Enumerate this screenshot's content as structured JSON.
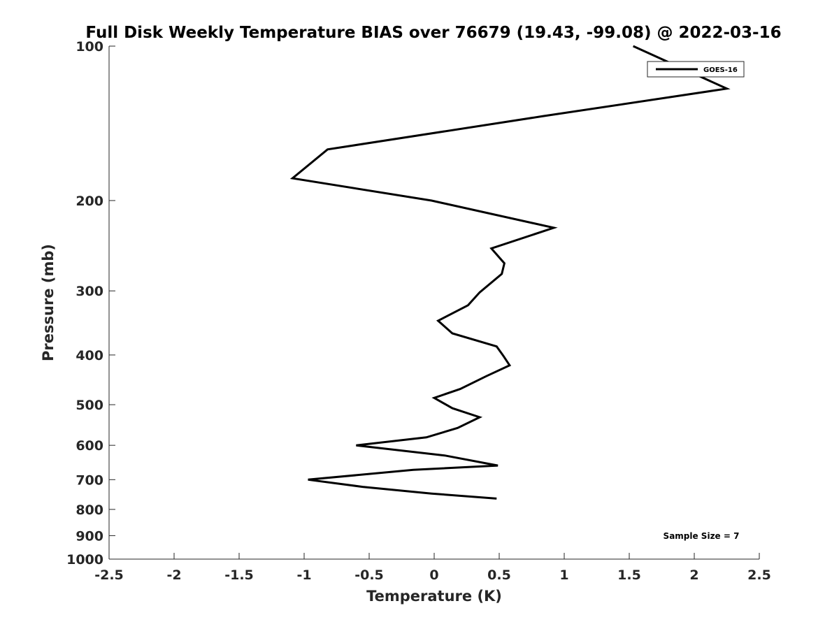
{
  "chart_data": {
    "type": "line",
    "title": "Full Disk Weekly Temperature BIAS over 76679 (19.43, -99.08) @ 2022-03-16",
    "xlabel": "Temperature (K)",
    "ylabel": "Pressure (mb)",
    "xlim": [
      -2.5,
      2.5
    ],
    "ylim": [
      100,
      1000
    ],
    "y_scale": "log",
    "y_reversed": true,
    "grid": false,
    "x_ticks": [
      -2.5,
      -2,
      -1.5,
      -1,
      -0.5,
      0,
      0.5,
      1,
      1.5,
      2,
      2.5
    ],
    "x_tick_labels": [
      "-2.5",
      "-2",
      "-1.5",
      "-1",
      "-0.5",
      "0",
      "0.5",
      "1",
      "1.5",
      "2",
      "2.5"
    ],
    "y_ticks": [
      100,
      200,
      300,
      400,
      500,
      600,
      700,
      800,
      900,
      1000
    ],
    "y_tick_labels": [
      "100",
      "200",
      "300",
      "400",
      "500",
      "600",
      "700",
      "800",
      "900",
      "1000"
    ],
    "legend": {
      "entries": [
        "GOES-16"
      ],
      "placement": "top-right"
    },
    "annotation": "Sample Size = 7",
    "series": [
      {
        "name": "GOES-16",
        "color": "#000000",
        "points": [
          [
            1.53,
            100
          ],
          [
            2.25,
            121
          ],
          [
            0.83,
            137
          ],
          [
            -0.82,
            159
          ],
          [
            -1.09,
            181
          ],
          [
            -0.02,
            200
          ],
          [
            0.92,
            226
          ],
          [
            0.44,
            248
          ],
          [
            0.54,
            265
          ],
          [
            0.52,
            278
          ],
          [
            0.35,
            302
          ],
          [
            0.26,
            320
          ],
          [
            0.03,
            343
          ],
          [
            0.14,
            363
          ],
          [
            0.48,
            385
          ],
          [
            0.53,
            401
          ],
          [
            0.58,
            419
          ],
          [
            0.4,
            440
          ],
          [
            0.2,
            466
          ],
          [
            0.0,
            485
          ],
          [
            0.14,
            508
          ],
          [
            0.35,
            529
          ],
          [
            0.18,
            555
          ],
          [
            -0.06,
            579
          ],
          [
            -0.6,
            600
          ],
          [
            0.08,
            628
          ],
          [
            0.49,
            657
          ],
          [
            -0.16,
            670
          ],
          [
            -0.97,
            700
          ],
          [
            -0.55,
            723
          ],
          [
            -0.02,
            745
          ],
          [
            0.48,
            762
          ]
        ]
      }
    ]
  }
}
